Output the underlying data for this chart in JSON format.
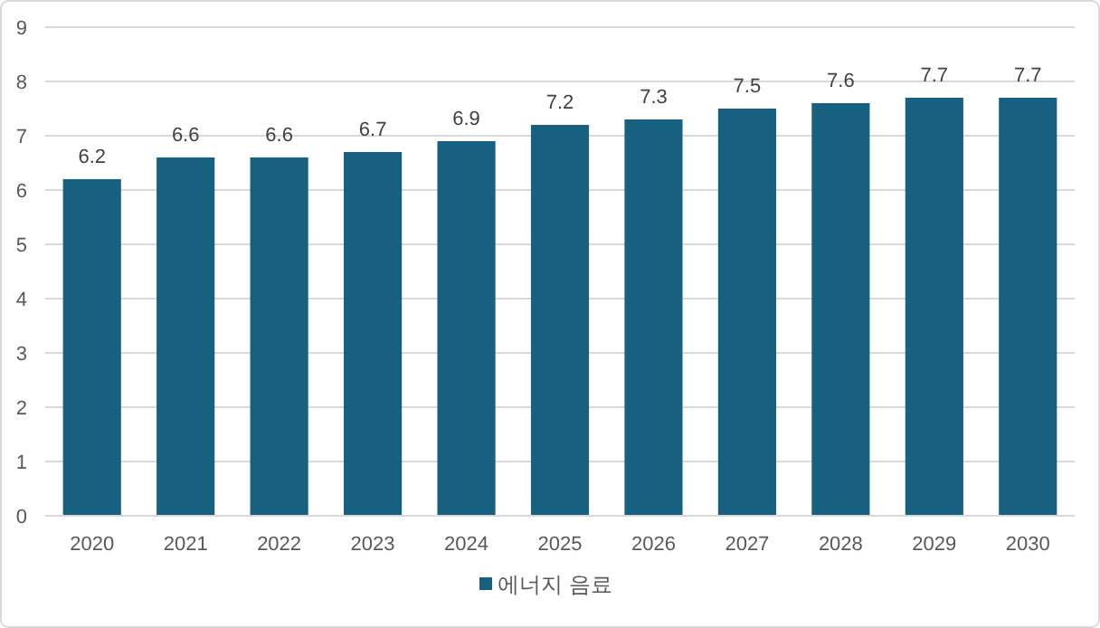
{
  "chart_data": {
    "type": "bar",
    "categories": [
      "2020",
      "2021",
      "2022",
      "2023",
      "2024",
      "2025",
      "2026",
      "2027",
      "2028",
      "2029",
      "2030"
    ],
    "series": [
      {
        "name": "에너지 음료",
        "color": "#17607f",
        "values": [
          6.2,
          6.6,
          6.6,
          6.7,
          6.9,
          7.2,
          7.3,
          7.5,
          7.6,
          7.7,
          7.7
        ]
      }
    ],
    "ylim": [
      0,
      9
    ],
    "yticks": [
      0,
      1,
      2,
      3,
      4,
      5,
      6,
      7,
      8,
      9
    ],
    "grid": "y",
    "legend": "bottom",
    "data_labels": true
  }
}
